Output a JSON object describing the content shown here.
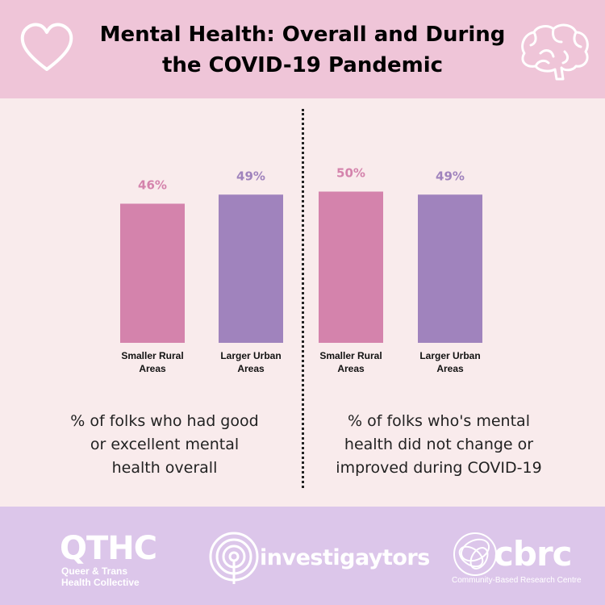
{
  "header": {
    "title_line1": "Mental Health: Overall and During",
    "title_line2": "the COVID-19 Pandemic"
  },
  "icons": {
    "left": "heart-icon",
    "right": "brain-icon"
  },
  "colors": {
    "rural": "#d483ac",
    "urban": "#a083bd",
    "rural_label": "#d483ac",
    "urban_label": "#a083bd"
  },
  "chart_data": [
    {
      "type": "bar",
      "categories": [
        "Smaller Rural Areas",
        "Larger Urban Areas"
      ],
      "values": [
        46,
        49
      ],
      "value_labels": [
        "46%",
        "49%"
      ],
      "category_lines": [
        [
          "Smaller Rural",
          "Areas"
        ],
        [
          "Larger Urban",
          "Areas"
        ]
      ],
      "caption_lines": [
        "% of folks who had good",
        "or excellent mental",
        "health overall"
      ]
    },
    {
      "type": "bar",
      "categories": [
        "Smaller Rural Areas",
        "Larger Urban Areas"
      ],
      "values": [
        50,
        49
      ],
      "value_labels": [
        "50%",
        "49%"
      ],
      "category_lines": [
        [
          "Smaller Rural",
          "Areas"
        ],
        [
          "Larger Urban",
          "Areas"
        ]
      ],
      "caption_lines": [
        "% of folks who's mental",
        "health did not change or",
        "improved during COVID-19"
      ]
    }
  ],
  "footer": {
    "qthc_abbr": "QTHC",
    "qthc_line1": "Queer & Trans",
    "qthc_line2": "Health Collective",
    "investigaytors": "investigaytors",
    "cbrc_abbr": "cbrc",
    "cbrc_full": "Community-Based Research Centre"
  }
}
